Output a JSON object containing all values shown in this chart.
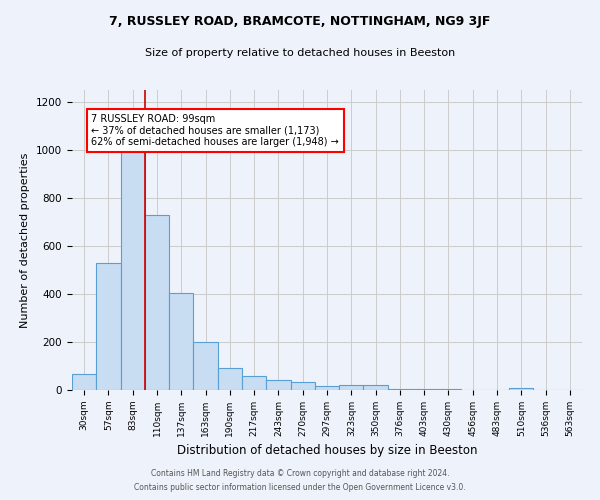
{
  "title1": "7, RUSSLEY ROAD, BRAMCOTE, NOTTINGHAM, NG9 3JF",
  "title2": "Size of property relative to detached houses in Beeston",
  "xlabel": "Distribution of detached houses by size in Beeston",
  "ylabel": "Number of detached properties",
  "categories": [
    "30sqm",
    "57sqm",
    "83sqm",
    "110sqm",
    "137sqm",
    "163sqm",
    "190sqm",
    "217sqm",
    "243sqm",
    "270sqm",
    "297sqm",
    "323sqm",
    "350sqm",
    "376sqm",
    "403sqm",
    "430sqm",
    "456sqm",
    "483sqm",
    "510sqm",
    "536sqm",
    "563sqm"
  ],
  "values": [
    65,
    530,
    1000,
    730,
    405,
    200,
    90,
    60,
    40,
    35,
    15,
    20,
    20,
    5,
    5,
    3,
    2,
    2,
    10,
    2,
    2
  ],
  "bar_color": "#c8ddf2",
  "bar_edge_color": "#5a9fd4",
  "bar_linewidth": 0.8,
  "property_line_x": 2.5,
  "property_label": "7 RUSSLEY ROAD: 99sqm",
  "annotation_line1": "← 37% of detached houses are smaller (1,173)",
  "annotation_line2": "62% of semi-detached houses are larger (1,948) →",
  "annotation_box_color": "white",
  "annotation_box_edge": "red",
  "red_line_color": "#cc0000",
  "ylim": [
    0,
    1250
  ],
  "yticks": [
    0,
    200,
    400,
    600,
    800,
    1000,
    1200
  ],
  "grid_color": "#cccccc",
  "bg_color": "#eef2fa",
  "footer1": "Contains HM Land Registry data © Crown copyright and database right 2024.",
  "footer2": "Contains public sector information licensed under the Open Government Licence v3.0."
}
